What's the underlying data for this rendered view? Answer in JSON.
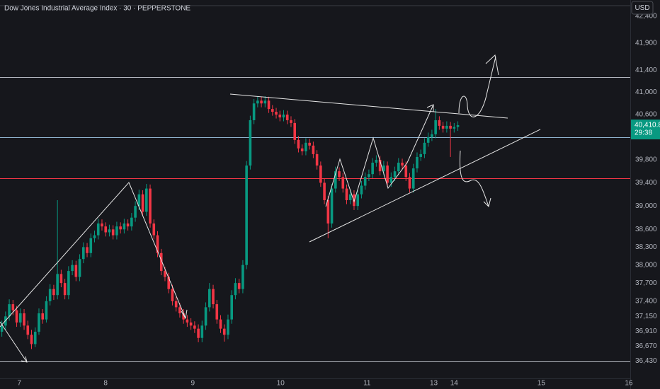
{
  "chart_data": {
    "type": "candlestick",
    "title": "Dow Jones Industrial Average Index · 30 · PEPPERSTONE",
    "currency": "USD",
    "last_price_label": "40,410.8",
    "countdown": "29:38",
    "log": true,
    "up_color": "#089981",
    "down_color": "#f23645",
    "xlim": [
      0,
      170
    ],
    "xticks": [
      {
        "value": 5.2,
        "label": "7"
      },
      {
        "value": 28.5,
        "label": "8"
      },
      {
        "value": 52,
        "label": "9"
      },
      {
        "value": 75.7,
        "label": "10"
      },
      {
        "value": 99,
        "label": "11"
      },
      {
        "value": 117,
        "label": "13"
      },
      {
        "value": 122.5,
        "label": "14"
      },
      {
        "value": 146,
        "label": "15"
      },
      {
        "value": 169.6,
        "label": "16"
      }
    ],
    "ylim": [
      36150,
      42700
    ],
    "yticks": [
      {
        "value": 42400,
        "label": "42,400"
      },
      {
        "value": 41900,
        "label": "41,900"
      },
      {
        "value": 41400,
        "label": "41,400"
      },
      {
        "value": 41000,
        "label": "41,000"
      },
      {
        "value": 40600,
        "label": "40,600"
      },
      {
        "value": 39800,
        "label": "39,800"
      },
      {
        "value": 39400,
        "label": "39,400"
      },
      {
        "value": 39000,
        "label": "39,000"
      },
      {
        "value": 38600,
        "label": "38,600"
      },
      {
        "value": 38300,
        "label": "38,300"
      },
      {
        "value": 38000,
        "label": "38,000"
      },
      {
        "value": 37700,
        "label": "37,700"
      },
      {
        "value": 37400,
        "label": "37,400"
      },
      {
        "value": 37150,
        "label": "37,150"
      },
      {
        "value": 36910,
        "label": "36,910"
      },
      {
        "value": 36670,
        "label": "36,670"
      },
      {
        "value": 36430,
        "label": "36,430"
      }
    ],
    "levels": [
      {
        "value": 41280,
        "color": "#b2b5be"
      },
      {
        "value": 40200,
        "color": "#8fb3cf"
      },
      {
        "value": 39480,
        "color": "#f23645"
      },
      {
        "value": 36420,
        "color": "#b2b5be"
      }
    ],
    "candles": [
      [
        36900,
        37080,
        36820,
        37000
      ],
      [
        37000,
        37230,
        36930,
        37150
      ],
      [
        37150,
        37430,
        37080,
        37350
      ],
      [
        37350,
        37420,
        37170,
        37250
      ],
      [
        37250,
        37320,
        36980,
        37050
      ],
      [
        37050,
        37280,
        36980,
        37200
      ],
      [
        37200,
        37270,
        36930,
        37000
      ],
      [
        37000,
        37080,
        36780,
        36850
      ],
      [
        36850,
        36930,
        36620,
        36700
      ],
      [
        36700,
        36970,
        36650,
        36900
      ],
      [
        36900,
        37280,
        36850,
        37200
      ],
      [
        37200,
        37270,
        37030,
        37100
      ],
      [
        37100,
        37480,
        37050,
        37400
      ],
      [
        37400,
        37680,
        37330,
        37600
      ],
      [
        37600,
        37670,
        37420,
        37500
      ],
      [
        37500,
        39100,
        37430,
        37850
      ],
      [
        37850,
        37920,
        37630,
        37700
      ],
      [
        37700,
        37770,
        37430,
        37500
      ],
      [
        37500,
        37980,
        37430,
        37900
      ],
      [
        37900,
        38080,
        37830,
        38000
      ],
      [
        38000,
        38070,
        37730,
        37800
      ],
      [
        37800,
        38180,
        37730,
        38100
      ],
      [
        38100,
        38380,
        38030,
        38300
      ],
      [
        38300,
        38370,
        38130,
        38200
      ],
      [
        38200,
        38530,
        38130,
        38450
      ],
      [
        38450,
        38580,
        38380,
        38500
      ],
      [
        38500,
        38780,
        38430,
        38700
      ],
      [
        38700,
        38770,
        38580,
        38650
      ],
      [
        38650,
        38720,
        38480,
        38550
      ],
      [
        38550,
        38680,
        38480,
        38600
      ],
      [
        38600,
        38670,
        38430,
        38500
      ],
      [
        38500,
        38730,
        38430,
        38650
      ],
      [
        38650,
        38720,
        38530,
        38600
      ],
      [
        38600,
        38780,
        38530,
        38700
      ],
      [
        38700,
        38770,
        38580,
        38650
      ],
      [
        38650,
        38880,
        38580,
        38800
      ],
      [
        38800,
        39080,
        38730,
        39000
      ],
      [
        39000,
        39280,
        38930,
        39200
      ],
      [
        39200,
        39270,
        38830,
        38900
      ],
      [
        38900,
        39380,
        38830,
        39300
      ],
      [
        39300,
        39370,
        38630,
        38700
      ],
      [
        38700,
        38770,
        38430,
        38500
      ],
      [
        38500,
        38570,
        38130,
        38200
      ],
      [
        38200,
        38270,
        37830,
        37900
      ],
      [
        37900,
        37970,
        37730,
        37800
      ],
      [
        37800,
        37870,
        37530,
        37600
      ],
      [
        37600,
        37670,
        37330,
        37400
      ],
      [
        37400,
        37470,
        37230,
        37300
      ],
      [
        37300,
        37370,
        37130,
        37200
      ],
      [
        37200,
        37270,
        37030,
        37100
      ],
      [
        37100,
        37170,
        36980,
        37050
      ],
      [
        37050,
        37120,
        36930,
        37000
      ],
      [
        37000,
        37070,
        36880,
        36950
      ],
      [
        36950,
        37020,
        36730,
        36800
      ],
      [
        36800,
        37080,
        36730,
        37000
      ],
      [
        37000,
        37380,
        36930,
        37300
      ],
      [
        37300,
        37700,
        37230,
        37600
      ],
      [
        37600,
        37670,
        37280,
        37350
      ],
      [
        37350,
        37420,
        37030,
        37100
      ],
      [
        37100,
        37170,
        36880,
        36950
      ],
      [
        36950,
        37020,
        36740,
        36850
      ],
      [
        36850,
        37180,
        36780,
        37100
      ],
      [
        37100,
        37580,
        37030,
        37500
      ],
      [
        37500,
        37780,
        37430,
        37700
      ],
      [
        37700,
        37770,
        37530,
        37600
      ],
      [
        37600,
        38080,
        37530,
        38000
      ],
      [
        38000,
        39780,
        37930,
        39700
      ],
      [
        39700,
        40580,
        39630,
        40500
      ],
      [
        40500,
        40880,
        40430,
        40800
      ],
      [
        40800,
        40930,
        40730,
        40850
      ],
      [
        40850,
        40920,
        40730,
        40800
      ],
      [
        40800,
        40930,
        40730,
        40850
      ],
      [
        40850,
        40920,
        40630,
        40700
      ],
      [
        40700,
        40770,
        40580,
        40650
      ],
      [
        40650,
        40720,
        40530,
        40600
      ],
      [
        40600,
        40670,
        40480,
        40550
      ],
      [
        40550,
        40680,
        40480,
        40600
      ],
      [
        40600,
        40670,
        40430,
        40500
      ],
      [
        40500,
        40570,
        40380,
        40450
      ],
      [
        40450,
        40520,
        40080,
        40150
      ],
      [
        40150,
        40220,
        39930,
        40000
      ],
      [
        40000,
        40070,
        39880,
        39950
      ],
      [
        39950,
        40180,
        39880,
        40100
      ],
      [
        40100,
        40170,
        39980,
        40050
      ],
      [
        40050,
        40120,
        39830,
        39900
      ],
      [
        39900,
        39970,
        39630,
        39700
      ],
      [
        39700,
        39770,
        39330,
        39400
      ],
      [
        39400,
        39470,
        39030,
        39100
      ],
      [
        39100,
        39170,
        38450,
        38700
      ],
      [
        38700,
        39380,
        38630,
        39300
      ],
      [
        39300,
        39680,
        39230,
        39600
      ],
      [
        39600,
        39670,
        39430,
        39500
      ],
      [
        39500,
        39570,
        39230,
        39300
      ],
      [
        39300,
        39370,
        39030,
        39100
      ],
      [
        39100,
        39280,
        39030,
        39200
      ],
      [
        39200,
        39270,
        38930,
        39000
      ],
      [
        39000,
        39280,
        38930,
        39200
      ],
      [
        39200,
        39430,
        39130,
        39350
      ],
      [
        39350,
        39580,
        39280,
        39500
      ],
      [
        39500,
        39630,
        39430,
        39550
      ],
      [
        39550,
        39830,
        39480,
        39750
      ],
      [
        39750,
        39880,
        39680,
        39800
      ],
      [
        39800,
        39870,
        39530,
        39600
      ],
      [
        39600,
        39780,
        39530,
        39700
      ],
      [
        39700,
        39770,
        39330,
        39400
      ],
      [
        39400,
        39580,
        39330,
        39500
      ],
      [
        39500,
        39680,
        39430,
        39600
      ],
      [
        39600,
        39830,
        39530,
        39750
      ],
      [
        39750,
        39820,
        39630,
        39700
      ],
      [
        39700,
        39770,
        39430,
        39500
      ],
      [
        39500,
        39570,
        39230,
        39300
      ],
      [
        39300,
        39730,
        39230,
        39650
      ],
      [
        39650,
        39930,
        39580,
        39850
      ],
      [
        39850,
        39980,
        39780,
        39900
      ],
      [
        39900,
        40180,
        39830,
        40100
      ],
      [
        40100,
        40280,
        40030,
        40200
      ],
      [
        40200,
        40330,
        40130,
        40250
      ],
      [
        40250,
        40700,
        40180,
        40500
      ],
      [
        40500,
        40570,
        40330,
        40400
      ],
      [
        40400,
        40470,
        40280,
        40350
      ],
      [
        40350,
        40480,
        40280,
        40400
      ],
      [
        40400,
        40470,
        39850,
        40350
      ],
      [
        40350,
        40450,
        40280,
        40380
      ],
      [
        40380,
        40480,
        40310,
        40410.8
      ]
    ]
  }
}
